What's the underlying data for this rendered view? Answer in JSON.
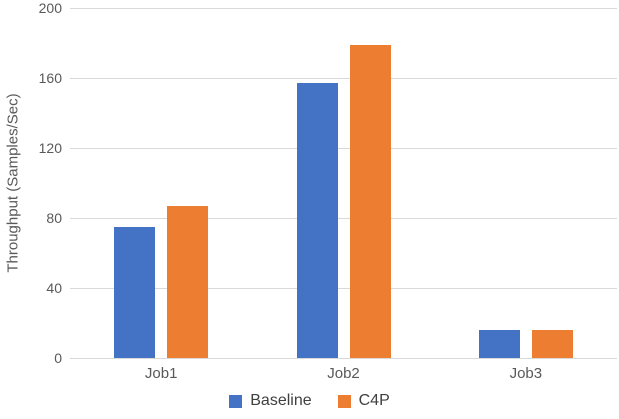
{
  "chart_data": {
    "type": "bar",
    "title": "",
    "categories": [
      "Job1",
      "Job2",
      "Job3"
    ],
    "series": [
      {
        "name": "Baseline",
        "color": "#4472C4",
        "values": [
          75,
          157,
          16
        ]
      },
      {
        "name": "C4P",
        "color": "#ED7D31",
        "values": [
          87,
          179,
          16
        ]
      }
    ],
    "xlabel": "",
    "ylabel": "Throughput (Samples/Sec)",
    "ylim": [
      0,
      200
    ],
    "yticks": [
      0,
      40,
      80,
      120,
      160,
      200
    ],
    "grid": true,
    "legend_position": "bottom"
  },
  "colors": {
    "gridline": "#d9d9d9",
    "axis_text": "#595959",
    "legend_text": "#404040",
    "background": "#ffffff"
  }
}
